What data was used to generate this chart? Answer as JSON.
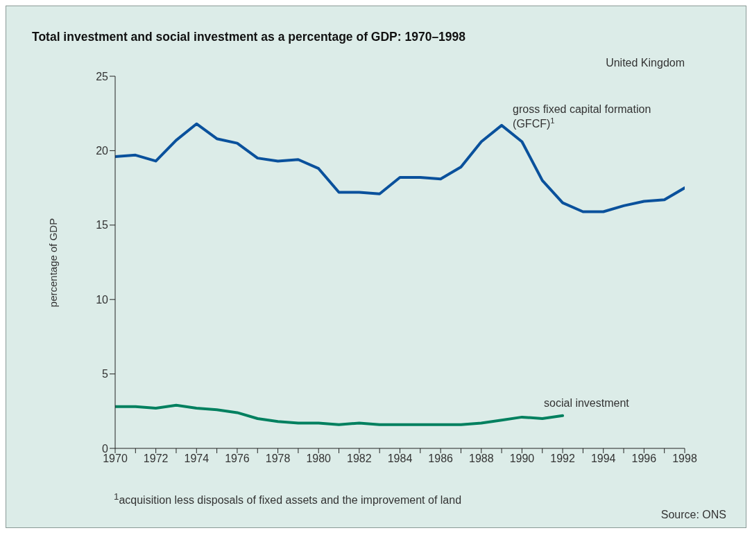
{
  "chart_data": {
    "type": "line",
    "title": "Total investment and social investment as a percentage of GDP: 1970–1998",
    "subtitle": "United Kingdom",
    "ylabel": "percentage of GDP",
    "x": [
      1970,
      1971,
      1972,
      1973,
      1974,
      1975,
      1976,
      1977,
      1978,
      1979,
      1980,
      1981,
      1982,
      1983,
      1984,
      1985,
      1986,
      1987,
      1988,
      1989,
      1990,
      1991,
      1992,
      1993,
      1994,
      1995,
      1996,
      1997,
      1998
    ],
    "series": [
      {
        "name": "gross fixed capital formation (GFCF)$^{1}$",
        "color": "#0a519c",
        "values": [
          19.6,
          19.7,
          19.3,
          20.7,
          21.8,
          20.8,
          20.5,
          19.5,
          19.3,
          19.4,
          18.8,
          17.2,
          17.2,
          17.1,
          18.2,
          18.2,
          18.1,
          18.9,
          20.6,
          21.7,
          20.6,
          18.0,
          16.5,
          15.9,
          15.9,
          16.3,
          16.6,
          16.7,
          17.5
        ]
      },
      {
        "name": "social investment",
        "color": "#00805f",
        "values": [
          2.8,
          2.8,
          2.7,
          2.9,
          2.7,
          2.6,
          2.4,
          2.0,
          1.8,
          1.7,
          1.7,
          1.6,
          1.7,
          1.6,
          1.6,
          1.6,
          1.6,
          1.6,
          1.7,
          1.9,
          2.1,
          2.0,
          2.2,
          null,
          null,
          null,
          null,
          null,
          null
        ]
      }
    ],
    "xlim": [
      1970,
      1998
    ],
    "xticks": [
      1970,
      {
        "value": 1971,
        "label": null
      },
      1972,
      {
        "value": 1973,
        "label": null
      },
      1974,
      {
        "value": 1975,
        "label": null
      },
      1976,
      {
        "value": 1977,
        "label": null
      },
      1978,
      {
        "value": 1979,
        "label": null
      },
      1980,
      {
        "value": 1981,
        "label": null
      },
      1982,
      {
        "value": 1983,
        "label": null
      },
      1984,
      {
        "value": 1985,
        "label": null
      },
      1986,
      {
        "value": 1987,
        "label": null
      },
      1988,
      {
        "value": 1989,
        "label": null
      },
      1990,
      {
        "value": 1991,
        "label": null
      },
      1992,
      {
        "value": 1993,
        "label": null
      },
      1994,
      {
        "value": 1995,
        "label": null
      },
      1996,
      {
        "value": 1997,
        "label": null
      },
      1998
    ],
    "ylim": [
      0,
      25
    ],
    "yticks": [
      0,
      5,
      10,
      15,
      20,
      25
    ],
    "grid": false,
    "legend": false,
    "marker": "none",
    "line_style": "solid",
    "annotations": [
      "$^{1}$acquisition less disposals of fixed assets and the improvement of land",
      "Source: ONS"
    ]
  }
}
